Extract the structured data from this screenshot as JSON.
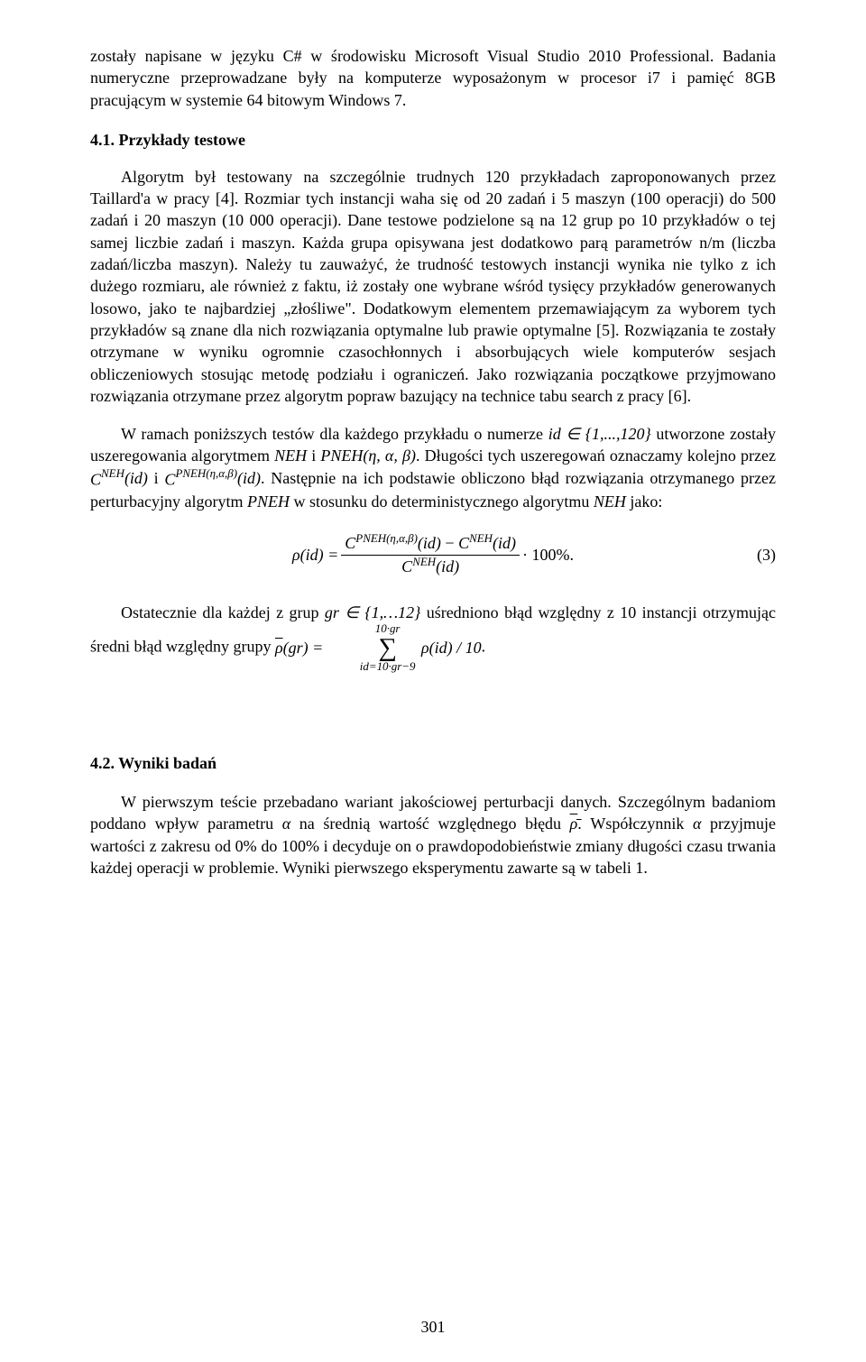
{
  "paragraphs": {
    "p1": "zostały napisane w języku C# w środowisku Microsoft Visual Studio 2010 Professional. Badania numeryczne przeprowadzane były na komputerze wyposażonym w procesor i7 i pamięć 8GB pracującym w systemie 64 bitowym Windows 7.",
    "heading41": "4.1. Przykłady testowe",
    "p2": "Algorytm był testowany na szczególnie trudnych 120 przykładach zaproponowanych przez Taillard'a w pracy [4]. Rozmiar tych instancji waha się od 20 zadań i 5 maszyn (100 operacji) do 500 zadań i 20 maszyn (10 000 operacji). Dane testowe podzielone są na 12 grup po 10 przykładów o tej samej liczbie zadań i maszyn. Każda grupa opisywana jest dodatkowo parą parametrów n/m (liczba zadań/liczba maszyn). Należy tu zauważyć, że trudność testowych instancji wynika nie tylko z ich dużego rozmiaru, ale również z faktu, iż zostały one wybrane wśród tysięcy przykładów generowanych losowo, jako te najbardziej „złośliwe\". Dodatkowym elementem przemawiającym za wyborem tych przykładów są znane dla nich rozwiązania optymalne lub prawie optymalne [5]. Rozwiązania te zostały otrzymane w wyniku ogromnie czasochłonnych i absorbujących wiele komputerów sesjach obliczeniowych stosując metodę podziału i ograniczeń. Jako rozwiązania początkowe przyjmowano rozwiązania otrzymane przez algorytm popraw bazujący na technice tabu search z pracy [6].",
    "p3_part1": "W ramach poniższych testów dla każdego przykładu o numerze ",
    "p3_id_set": "id ∈ {1,...,120}",
    "p3_part2": " utworzone zostały uszeregowania algorytmem ",
    "p3_neh": "NEH",
    "p3_and": " i ",
    "p3_pneh": "PNEH(η, α, β)",
    "p3_part3": ". Długości tych uszeregowań oznaczamy kolejno przez ",
    "p3_cneh": "C",
    "p3_cneh_sup": "NEH",
    "p3_cneh_arg": "(id)",
    "p3_cpneh": "C",
    "p3_cpneh_sup": "PNEH(η,α,β)",
    "p3_cpneh_arg": "(id)",
    "p3_part4": ". Następnie na ich podstawie obliczono błąd rozwiązania otrzymanego przez perturbacyjny algorytm ",
    "p3_pneh2": "PNEH",
    "p3_part5": " w stosunku do deterministycznego algorytmu ",
    "p3_neh2": "NEH",
    "p3_part6": " jako:",
    "formula3_lhs": "ρ(id) = ",
    "formula3_num_c1": "C",
    "formula3_num_c1_sup": "PNEH(η,α,β)",
    "formula3_num_c1_arg": "(id)",
    "formula3_num_minus": " − ",
    "formula3_num_c2": "C",
    "formula3_num_c2_sup": "NEH",
    "formula3_num_c2_arg": "(id)",
    "formula3_den_c": "C",
    "formula3_den_sup": "NEH",
    "formula3_den_arg": "(id)",
    "formula3_tail": " · 100%.",
    "formula3_number": "(3)",
    "p4_part1": "Ostatecznie dla każdej z grup ",
    "p4_gr": "gr ∈ {1,…12}",
    "p4_part2": " uśredniono błąd względny z 10 instancji otrzymując średni błąd względny grupy    ",
    "p4_rhobar": "ρ̄(gr) = ",
    "p4_sum_top": "10·gr",
    "p4_sum_bot": "id=10·gr−9",
    "p4_sum_body": " ρ(id) / 10",
    "p4_period": ".",
    "heading42": "4.2. Wyniki badań",
    "p5_part1": "W pierwszym teście przebadano wariant jakościowej perturbacji danych. Szczególnym badaniom poddano wpływ parametru ",
    "p5_alpha": "α",
    "p5_part2": " na średnią wartość względnego błędu ",
    "p5_rhobar": "ρ̄",
    "p5_part3": ". Współczynnik ",
    "p5_alpha2": "α",
    "p5_part4": " przyjmuje wartości z zakresu od 0% do 100% i decyduje on o prawdopodobieństwie zmiany długości czasu trwania każdej operacji w problemie. Wyniki pierwszego eksperymentu zawarte są w tabeli 1."
  },
  "footer": "301",
  "colors": {
    "bg": "#ffffff",
    "text": "#000000"
  }
}
